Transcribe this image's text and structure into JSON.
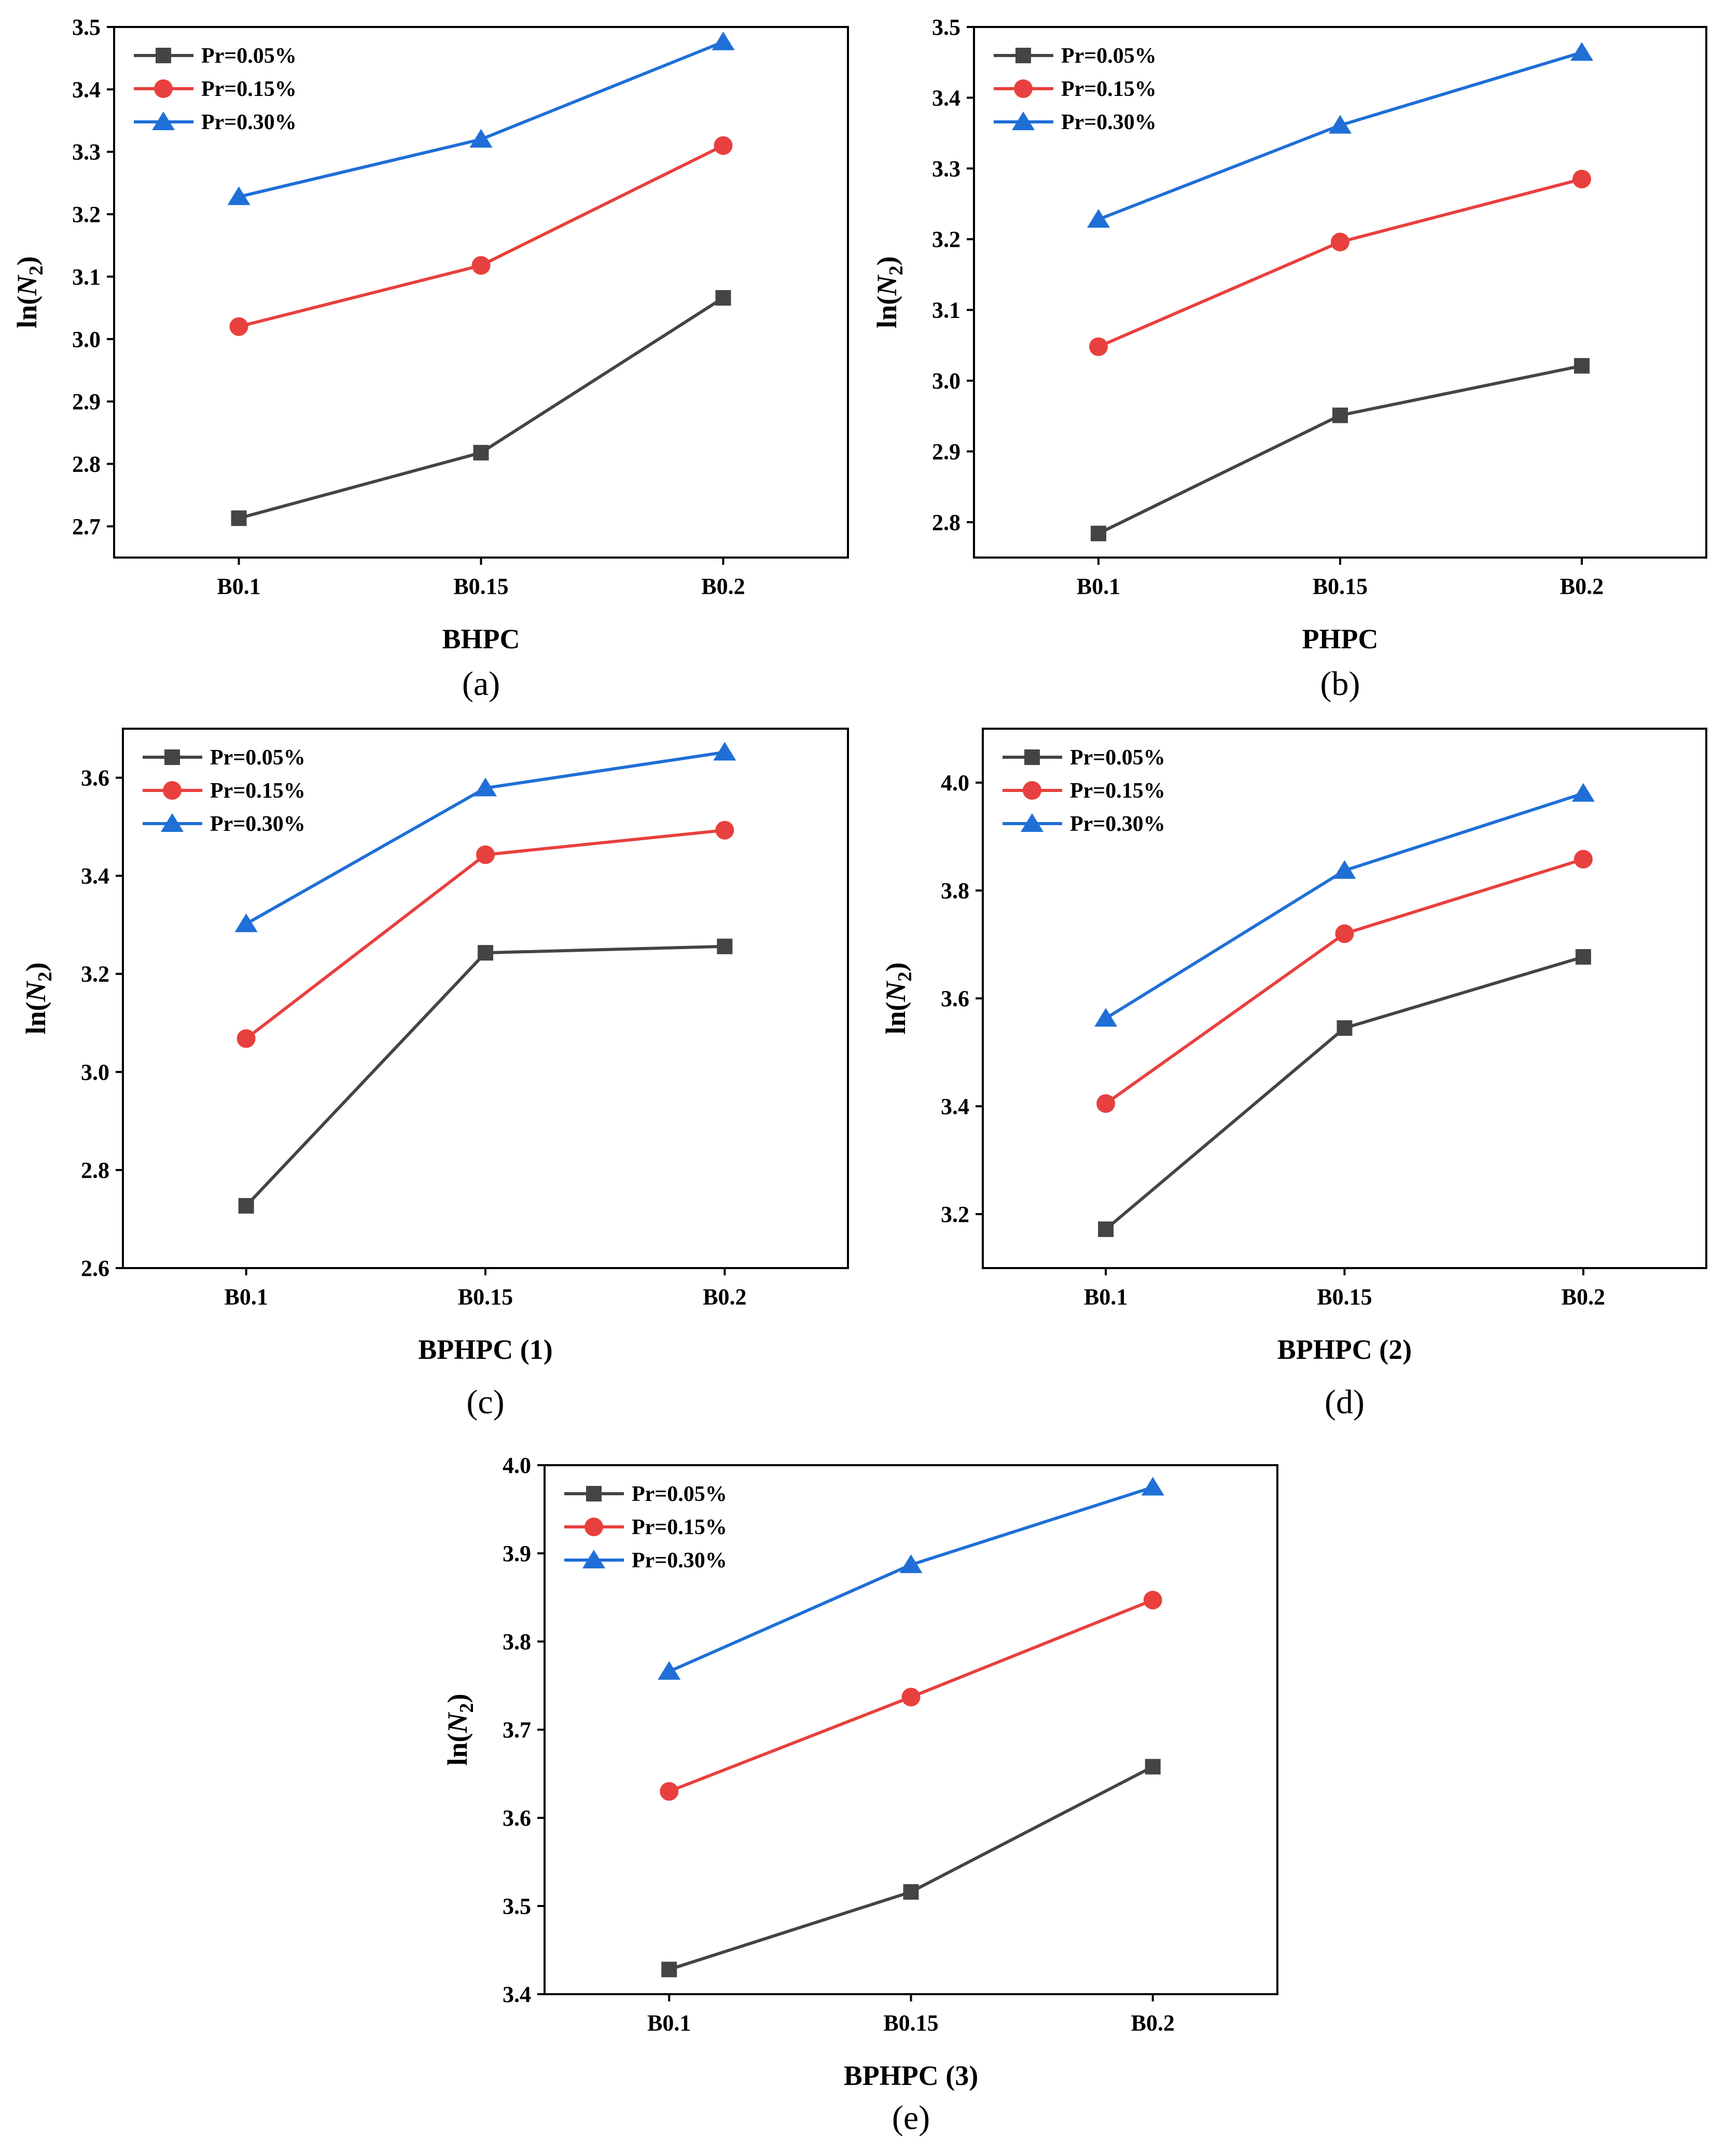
{
  "chart_data": [
    {
      "type": "line",
      "panel_label": "(a)",
      "categories": [
        "B0.1",
        "B0.15",
        "B0.2"
      ],
      "xlabel": "BHPC",
      "ylabel": "ln(N2)",
      "ylim": [
        2.65,
        3.5
      ],
      "yticks": [
        "2.7",
        "2.8",
        "2.9",
        "3.0",
        "3.1",
        "3.2",
        "3.3",
        "3.4",
        "3.5"
      ],
      "legend_position": "top-left",
      "series": [
        {
          "name": "Pr=0.05%",
          "color": "#444444",
          "marker": "square",
          "values": [
            2.713,
            2.818,
            3.066
          ]
        },
        {
          "name": "Pr=0.15%",
          "color": "#e8403e",
          "marker": "circle",
          "values": [
            3.02,
            3.118,
            3.31
          ]
        },
        {
          "name": "Pr=0.30%",
          "color": "#1f6fd6",
          "marker": "triangle",
          "values": [
            3.228,
            3.32,
            3.476
          ]
        }
      ]
    },
    {
      "type": "line",
      "panel_label": "(b)",
      "categories": [
        "B0.1",
        "B0.15",
        "B0.2"
      ],
      "xlabel": "PHPC",
      "ylabel": "ln(N2)",
      "ylim": [
        2.75,
        3.5
      ],
      "yticks": [
        "2.8",
        "2.9",
        "3.0",
        "3.1",
        "3.2",
        "3.3",
        "3.4",
        "3.5"
      ],
      "legend_position": "top-left",
      "series": [
        {
          "name": "Pr=0.05%",
          "color": "#444444",
          "marker": "square",
          "values": [
            2.784,
            2.951,
            3.021
          ]
        },
        {
          "name": "Pr=0.15%",
          "color": "#e8403e",
          "marker": "circle",
          "values": [
            3.048,
            3.196,
            3.285
          ]
        },
        {
          "name": "Pr=0.30%",
          "color": "#1f6fd6",
          "marker": "triangle",
          "values": [
            3.228,
            3.361,
            3.464
          ]
        }
      ]
    },
    {
      "type": "line",
      "panel_label": "(c)",
      "categories": [
        "B0.1",
        "B0.15",
        "B0.2"
      ],
      "xlabel": "BPHPC (1)",
      "ylabel": "ln(N2)",
      "ylim": [
        2.6,
        3.7
      ],
      "yticks": [
        "2.6",
        "2.8",
        "3.0",
        "3.2",
        "3.4",
        "3.6"
      ],
      "legend_position": "top-left",
      "series": [
        {
          "name": "Pr=0.05%",
          "color": "#444444",
          "marker": "square",
          "values": [
            2.727,
            3.243,
            3.256
          ]
        },
        {
          "name": "Pr=0.15%",
          "color": "#e8403e",
          "marker": "circle",
          "values": [
            3.068,
            3.443,
            3.493
          ]
        },
        {
          "name": "Pr=0.30%",
          "color": "#1f6fd6",
          "marker": "triangle",
          "values": [
            3.302,
            3.579,
            3.652
          ]
        }
      ]
    },
    {
      "type": "line",
      "panel_label": "(d)",
      "categories": [
        "B0.1",
        "B0.15",
        "B0.2"
      ],
      "xlabel": "BPHPC (2)",
      "ylabel": "ln(N2)",
      "ylim": [
        3.1,
        4.1
      ],
      "yticks": [
        "3.2",
        "3.4",
        "3.6",
        "3.8",
        "4.0"
      ],
      "legend_position": "top-left",
      "series": [
        {
          "name": "Pr=0.05%",
          "color": "#444444",
          "marker": "square",
          "values": [
            3.172,
            3.545,
            3.677
          ]
        },
        {
          "name": "Pr=0.15%",
          "color": "#e8403e",
          "marker": "circle",
          "values": [
            3.405,
            3.72,
            3.858
          ]
        },
        {
          "name": "Pr=0.30%",
          "color": "#1f6fd6",
          "marker": "triangle",
          "values": [
            3.563,
            3.837,
            3.98
          ]
        }
      ]
    },
    {
      "type": "line",
      "panel_label": "(e)",
      "categories": [
        "B0.1",
        "B0.15",
        "B0.2"
      ],
      "xlabel": "BPHPC (3)",
      "ylabel": "ln(N2)",
      "ylim": [
        3.4,
        4.0
      ],
      "yticks": [
        "3.4",
        "3.5",
        "3.6",
        "3.7",
        "3.8",
        "3.9",
        "4.0"
      ],
      "legend_position": "top-left",
      "series": [
        {
          "name": "Pr=0.05%",
          "color": "#444444",
          "marker": "square",
          "values": [
            3.428,
            3.516,
            3.658
          ]
        },
        {
          "name": "Pr=0.15%",
          "color": "#e8403e",
          "marker": "circle",
          "values": [
            3.63,
            3.737,
            3.847
          ]
        },
        {
          "name": "Pr=0.30%",
          "color": "#1f6fd6",
          "marker": "triangle",
          "values": [
            3.766,
            3.887,
            3.975
          ]
        }
      ]
    }
  ]
}
